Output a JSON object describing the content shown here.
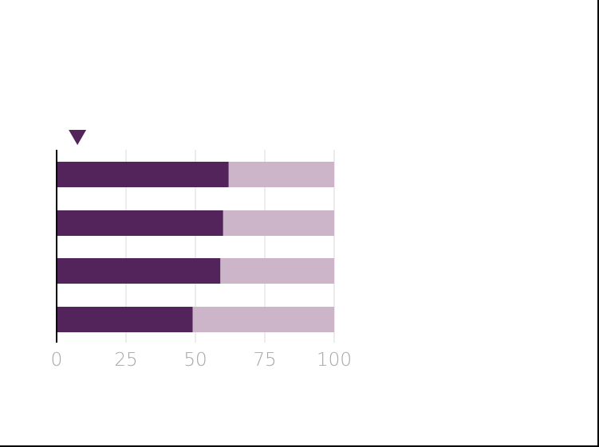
{
  "chart_data": {
    "type": "bar",
    "orientation": "horizontal",
    "stacked": true,
    "title": "",
    "xlabel": "",
    "ylabel": "",
    "categories": [
      "",
      "",
      "",
      ""
    ],
    "series": [
      {
        "values": [
          62,
          60,
          59,
          49
        ]
      },
      {
        "values": [
          38,
          40,
          41,
          51
        ]
      }
    ],
    "xlim": [
      0,
      100
    ],
    "xticks": [
      "0",
      "25",
      "50",
      "75",
      "100"
    ],
    "grid": "vertical",
    "legend": "none",
    "marker": {
      "shape": "downward-triangle",
      "value": 7.5
    },
    "colors": {
      "primary": "#52245b",
      "secondary": "#ccb4c9",
      "grid": "#d9d9d9",
      "axis": "#000000",
      "tick_text": "#a6a6a6"
    }
  }
}
